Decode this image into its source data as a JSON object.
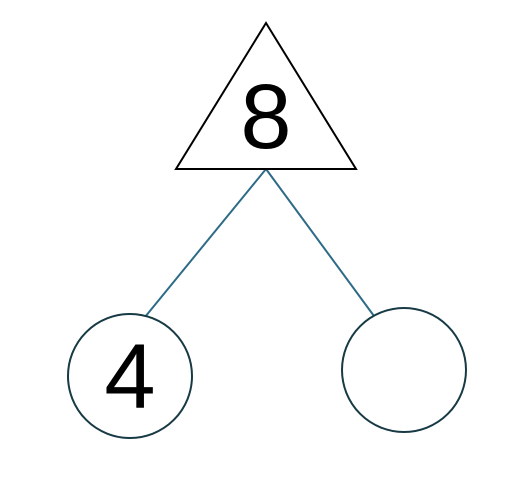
{
  "diagram": {
    "type": "number-bond",
    "whole": {
      "label": "8"
    },
    "parts": [
      {
        "label": "4"
      },
      {
        "label": ""
      }
    ],
    "colors": {
      "triangle_stroke": "#000000",
      "connector": "#2e6b86",
      "circle_stroke": "#173a44",
      "text": "#000000",
      "background": "#ffffff"
    }
  }
}
